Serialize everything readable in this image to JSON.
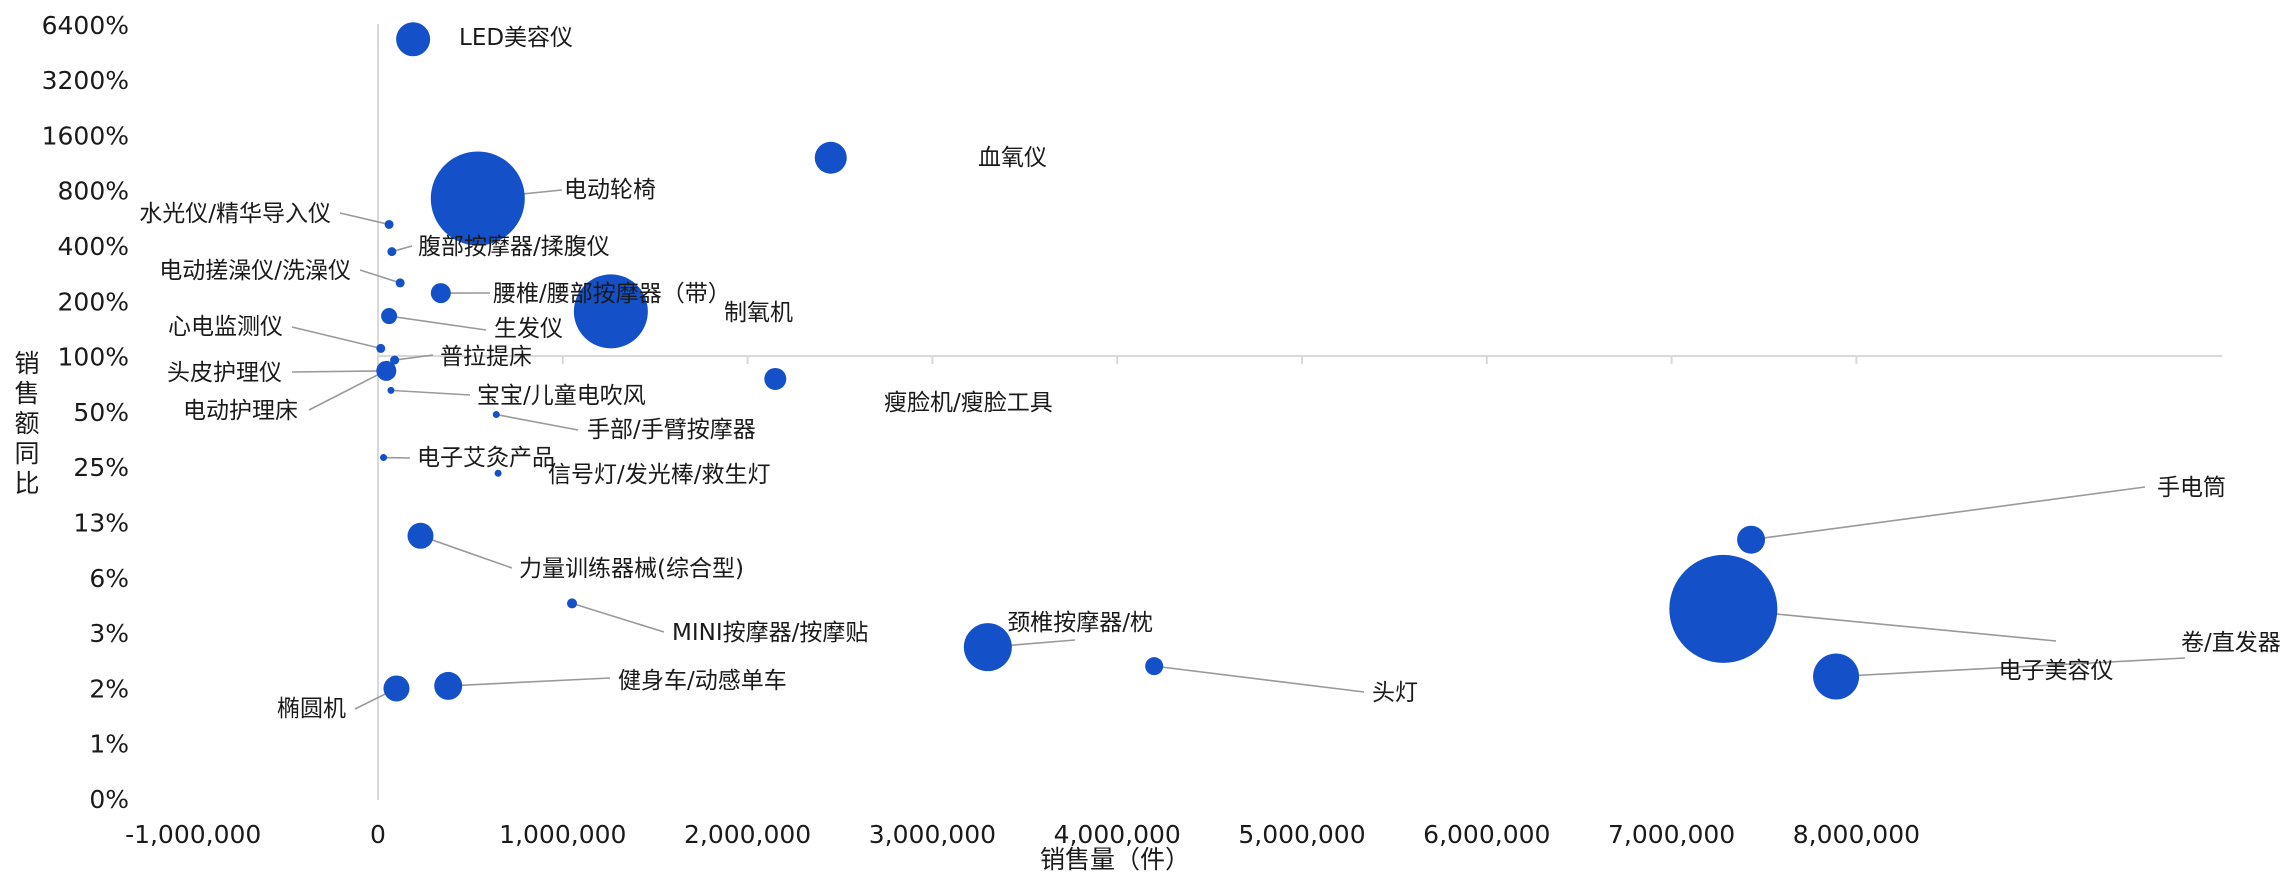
{
  "chart_data": {
    "type": "scatter",
    "bubble": true,
    "xlabel": "销售量（件）",
    "ylabel": "销售额同比",
    "x_ticks": [
      "-1,000,000",
      "0",
      "1,000,000",
      "2,000,000",
      "3,000,000",
      "4,000,000",
      "5,000,000",
      "6,000,000",
      "7,000,000",
      "8,000,000"
    ],
    "y_ticks": [
      "0%",
      "1%",
      "2%",
      "3%",
      "6%",
      "13%",
      "25%",
      "50%",
      "100%",
      "200%",
      "400%",
      "800%",
      "1600%",
      "3200%",
      "6400%"
    ],
    "xlim": [
      -1000000,
      8000000
    ],
    "y_scale": "log2",
    "bubble_color": "#1450c8",
    "points": [
      {
        "label": "LED美容仪",
        "x": 190000,
        "y": 5300
      },
      {
        "label": "血氧仪",
        "x": 2450000,
        "y": 1200
      },
      {
        "label": "电动轮椅",
        "x": 540000,
        "y": 720
      },
      {
        "label": "水光仪/精华导入仪",
        "x": 60000,
        "y": 520
      },
      {
        "label": "腹部按摩器/揉腹仪",
        "x": 75000,
        "y": 370
      },
      {
        "label": "电动搓澡仪/洗澡仪",
        "x": 120000,
        "y": 250
      },
      {
        "label": "腰椎/腰部按摩器（带）",
        "x": 340000,
        "y": 220
      },
      {
        "label": "制氧机",
        "x": 1260000,
        "y": 175
      },
      {
        "label": "生发仪",
        "x": 60000,
        "y": 165
      },
      {
        "label": "心电监测仪",
        "x": 15000,
        "y": 110
      },
      {
        "label": "普拉提床",
        "x": 90000,
        "y": 95
      },
      {
        "label": "头皮护理仪",
        "x": 45000,
        "y": 83
      },
      {
        "label": "电动护理床",
        "x": 30000,
        "y": 82
      },
      {
        "label": "宝宝/儿童电吹风",
        "x": 70000,
        "y": 65
      },
      {
        "label": "瘦脸机/瘦脸工具",
        "x": 2150000,
        "y": 75
      },
      {
        "label": "手部/手臂按摩器",
        "x": 640000,
        "y": 48
      },
      {
        "label": "电子艾灸产品",
        "x": 30000,
        "y": 28
      },
      {
        "label": "信号灯/发光棒/救生灯",
        "x": 650000,
        "y": 23
      },
      {
        "label": "力量训练器械(综合型)",
        "x": 230000,
        "y": 10.5
      },
      {
        "label": "MINI按摩器/按摩贴",
        "x": 1050000,
        "y": 4.5
      },
      {
        "label": "颈椎按摩器/枕",
        "x": 3300000,
        "y": 2.6
      },
      {
        "label": "头灯",
        "x": 4200000,
        "y": 2.05
      },
      {
        "label": "健身车/动感单车",
        "x": 380000,
        "y": 1.6
      },
      {
        "label": "椭圆机",
        "x": 100000,
        "y": 1.55
      },
      {
        "label": "手电筒",
        "x": 7430000,
        "y": 10
      },
      {
        "label": "电子美容仪",
        "x": 7280000,
        "y": 4.2
      },
      {
        "label": "卷/直发器",
        "x": 7890000,
        "y": 1.8
      }
    ]
  }
}
